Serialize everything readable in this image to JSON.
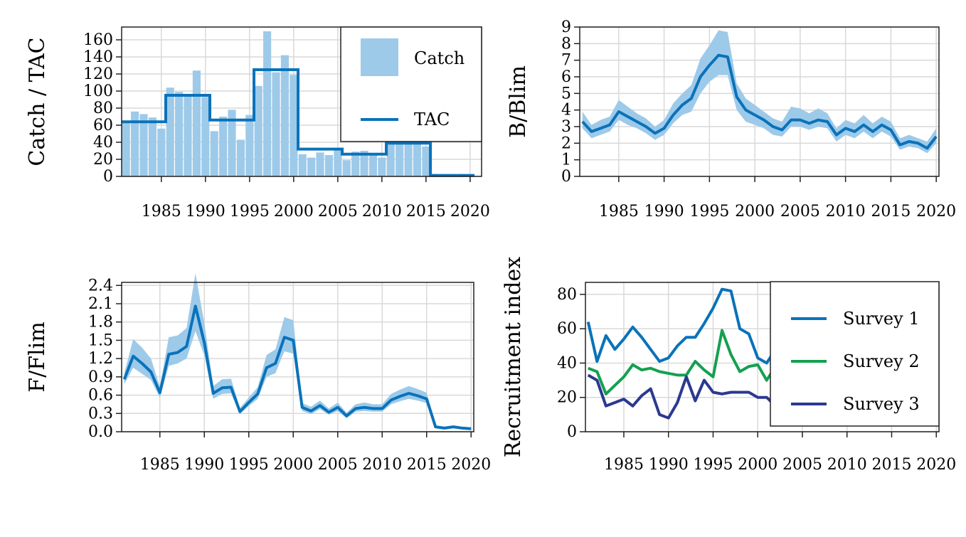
{
  "chart_data": [
    {
      "type": "bar",
      "ylabel": "Catch / TAC",
      "ylim": [
        0,
        175
      ],
      "xlim": [
        1981,
        2021
      ],
      "yticks": [
        0,
        20,
        40,
        60,
        80,
        100,
        120,
        140,
        160
      ],
      "xticks": [
        1985,
        1990,
        1995,
        2000,
        2005,
        2010,
        2015,
        2020
      ],
      "grid": true,
      "legend_position": "top-right",
      "colors": {
        "catch": "#9ecae9",
        "tac": "#0a72ba"
      },
      "series": [
        {
          "name": "Catch",
          "x": [
            1981,
            1982,
            1983,
            1984,
            1985,
            1986,
            1987,
            1988,
            1989,
            1990,
            1991,
            1992,
            1993,
            1994,
            1995,
            1996,
            1997,
            1998,
            1999,
            2000,
            2001,
            2002,
            2003,
            2004,
            2005,
            2006,
            2007,
            2008,
            2009,
            2010,
            2011,
            2012,
            2013,
            2014,
            2015,
            2016,
            2017,
            2018,
            2019,
            2020
          ],
          "values": [
            64,
            76,
            73,
            69,
            56,
            104,
            99,
            96,
            124,
            93,
            53,
            70,
            78,
            43,
            72,
            106,
            170,
            122,
            142,
            119,
            26,
            22,
            28,
            25,
            31,
            19,
            29,
            30,
            26,
            22,
            39,
            40,
            41,
            40,
            35,
            3,
            3,
            3,
            3,
            3
          ]
        },
        {
          "name": "TAC",
          "type": "step",
          "x": [
            1981,
            1986,
            1991,
            1996,
            2001,
            2006,
            2011,
            2016,
            2021
          ],
          "values": [
            64,
            95,
            66,
            125,
            32,
            26,
            39,
            1,
            1
          ]
        }
      ]
    },
    {
      "type": "line",
      "ylabel": "B/Blim",
      "ylim": [
        0,
        9
      ],
      "xlim": [
        1981,
        2020
      ],
      "yticks": [
        0,
        1,
        2,
        3,
        4,
        5,
        6,
        7,
        8,
        9
      ],
      "xticks": [
        1985,
        1990,
        1995,
        2000,
        2005,
        2010,
        2015,
        2020
      ],
      "grid": true,
      "colors": {
        "line": "#0a72ba",
        "band": "#9ecae9"
      },
      "series": [
        {
          "x": [
            1981,
            1982,
            1983,
            1984,
            1985,
            1986,
            1987,
            1988,
            1989,
            1990,
            1991,
            1992,
            1993,
            1994,
            1995,
            1996,
            1997,
            1998,
            1999,
            2000,
            2001,
            2002,
            2003,
            2004,
            2005,
            2006,
            2007,
            2008,
            2009,
            2010,
            2011,
            2012,
            2013,
            2014,
            2015,
            2016,
            2017,
            2018,
            2019,
            2020
          ],
          "values": [
            3.3,
            2.7,
            2.9,
            3.1,
            3.9,
            3.6,
            3.3,
            3.0,
            2.6,
            2.9,
            3.7,
            4.3,
            4.7,
            6.0,
            6.7,
            7.3,
            7.2,
            4.8,
            4.0,
            3.7,
            3.4,
            3.0,
            2.8,
            3.4,
            3.4,
            3.2,
            3.4,
            3.3,
            2.5,
            2.9,
            2.7,
            3.1,
            2.7,
            3.1,
            2.8,
            1.9,
            2.1,
            2.0,
            1.7,
            2.4
          ],
          "lower": [
            2.9,
            2.3,
            2.5,
            2.7,
            3.4,
            3.1,
            2.9,
            2.6,
            2.2,
            2.5,
            3.2,
            3.7,
            3.9,
            5.0,
            5.7,
            6.1,
            6.1,
            4.0,
            3.3,
            3.1,
            2.9,
            2.5,
            2.4,
            3.0,
            3.0,
            2.8,
            3.0,
            2.9,
            2.1,
            2.5,
            2.3,
            2.7,
            2.3,
            2.7,
            2.4,
            1.6,
            1.8,
            1.7,
            1.4,
            2.0
          ],
          "upper": [
            3.9,
            3.1,
            3.4,
            3.6,
            4.6,
            4.2,
            3.8,
            3.5,
            3.0,
            3.4,
            4.4,
            5.0,
            5.5,
            7.1,
            7.9,
            8.8,
            8.7,
            5.6,
            4.7,
            4.3,
            3.9,
            3.5,
            3.3,
            4.2,
            4.1,
            3.8,
            4.1,
            3.8,
            2.9,
            3.4,
            3.2,
            3.7,
            3.2,
            3.6,
            3.3,
            2.3,
            2.5,
            2.3,
            2.1,
            2.9
          ]
        }
      ]
    },
    {
      "type": "line",
      "ylabel": "F/Flim",
      "ylim": [
        0,
        2.45
      ],
      "xlim": [
        1981,
        2020
      ],
      "yticks": [
        0.0,
        0.3,
        0.6,
        0.9,
        1.2,
        1.5,
        1.8,
        2.1,
        2.4
      ],
      "ytick_labels": [
        "0.0",
        "0.3",
        "0.6",
        "0.9",
        "1.2",
        "1.5",
        "1.8",
        "2.1",
        "2.4"
      ],
      "xticks": [
        1985,
        1990,
        1995,
        2000,
        2005,
        2010,
        2015,
        2020
      ],
      "grid": true,
      "colors": {
        "line": "#0a72ba",
        "band": "#9ecae9"
      },
      "series": [
        {
          "x": [
            1981,
            1982,
            1983,
            1984,
            1985,
            1986,
            1987,
            1988,
            1989,
            1990,
            1991,
            1992,
            1993,
            1994,
            1995,
            1996,
            1997,
            1998,
            1999,
            2000,
            2001,
            2002,
            2003,
            2004,
            2005,
            2006,
            2007,
            2008,
            2009,
            2010,
            2011,
            2012,
            2013,
            2014,
            2015,
            2016,
            2017,
            2018,
            2019,
            2020
          ],
          "values": [
            0.86,
            1.24,
            1.12,
            0.98,
            0.64,
            1.27,
            1.3,
            1.4,
            2.06,
            1.46,
            0.63,
            0.72,
            0.73,
            0.33,
            0.48,
            0.62,
            1.05,
            1.12,
            1.55,
            1.5,
            0.4,
            0.34,
            0.43,
            0.32,
            0.4,
            0.26,
            0.38,
            0.4,
            0.38,
            0.38,
            0.52,
            0.58,
            0.63,
            0.59,
            0.54,
            0.08,
            0.06,
            0.08,
            0.06,
            0.05
          ],
          "lower": [
            0.78,
            1.05,
            0.95,
            0.85,
            0.56,
            1.08,
            1.12,
            1.2,
            1.65,
            1.25,
            0.54,
            0.62,
            0.63,
            0.29,
            0.42,
            0.54,
            0.9,
            0.96,
            1.32,
            1.28,
            0.34,
            0.29,
            0.37,
            0.28,
            0.34,
            0.22,
            0.33,
            0.34,
            0.33,
            0.33,
            0.45,
            0.5,
            0.54,
            0.51,
            0.47,
            0.06,
            0.05,
            0.06,
            0.05,
            0.04
          ],
          "upper": [
            0.96,
            1.52,
            1.38,
            1.2,
            0.74,
            1.55,
            1.58,
            1.7,
            2.6,
            1.78,
            0.75,
            0.86,
            0.87,
            0.39,
            0.56,
            0.73,
            1.26,
            1.35,
            1.88,
            1.83,
            0.47,
            0.41,
            0.51,
            0.38,
            0.48,
            0.31,
            0.45,
            0.48,
            0.45,
            0.45,
            0.62,
            0.69,
            0.75,
            0.7,
            0.64,
            0.1,
            0.08,
            0.1,
            0.08,
            0.07
          ]
        }
      ]
    },
    {
      "type": "line",
      "ylabel": "Recruitment index",
      "ylim": [
        0,
        87
      ],
      "xlim": [
        1981,
        2020
      ],
      "yticks": [
        0,
        20,
        40,
        60,
        80
      ],
      "xticks": [
        1985,
        1990,
        1995,
        2000,
        2005,
        2010,
        2015,
        2020
      ],
      "grid": true,
      "legend_position": "top-right",
      "series": [
        {
          "name": "Survey 1",
          "color": "#0a72ba",
          "x": [
            1981,
            1982,
            1983,
            1984,
            1985,
            1986,
            1987,
            1988,
            1989,
            1990,
            1991,
            1992,
            1993,
            1994,
            1995,
            1996,
            1997,
            1998,
            1999,
            2000,
            2001,
            2002
          ],
          "values": [
            64,
            41,
            56,
            48,
            54,
            61,
            55,
            48,
            41,
            43,
            50,
            55,
            55,
            63,
            72,
            83,
            82,
            60,
            57,
            43,
            40,
            48
          ]
        },
        {
          "name": "Survey 2",
          "color": "#14a050",
          "x": [
            1981,
            1982,
            1983,
            1984,
            1985,
            1986,
            1987,
            1988,
            1989,
            1990,
            1991,
            1992,
            1993,
            1994,
            1995,
            1996,
            1997,
            1998,
            1999,
            2000,
            2001,
            2002
          ],
          "values": [
            37,
            35,
            22,
            27,
            32,
            39,
            36,
            37,
            35,
            34,
            33,
            33,
            41,
            36,
            32,
            59,
            45,
            35,
            38,
            39,
            30,
            38
          ]
        },
        {
          "name": "Survey 3",
          "color": "#2b3990",
          "x": [
            1981,
            1982,
            1983,
            1984,
            1985,
            1986,
            1987,
            1988,
            1989,
            1990,
            1991,
            1992,
            1993,
            1994,
            1995,
            1996,
            1997,
            1998,
            1999,
            2000,
            2001,
            2002
          ],
          "values": [
            33,
            30,
            15,
            17,
            19,
            15,
            21,
            25,
            10,
            8,
            17,
            32,
            18,
            30,
            23,
            22,
            23,
            23,
            23,
            20,
            20,
            15
          ]
        }
      ]
    }
  ]
}
